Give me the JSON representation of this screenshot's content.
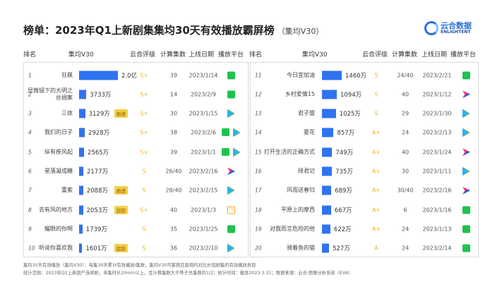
{
  "header": {
    "title": "榜单：2023年Q1上新剧集集均30天有效播放霸屏榜",
    "subtitle": "（集均V30）",
    "logo_cn": "云合数据",
    "logo_en": "ENLIGHTENT"
  },
  "columns": {
    "rank": "排名",
    "v30": "集均V30",
    "rating": "云合评级",
    "eps": "计算集数",
    "date": "上线日期",
    "platform": "播放平台"
  },
  "colors": {
    "bar": "#2f73f0",
    "rating": "#f0b400",
    "badge": "#f3cf48"
  },
  "chart_data": {
    "type": "bar",
    "xlabel": "集均V30",
    "unit": "万",
    "left": [
      {
        "rank": "1",
        "name": "狂飙",
        "value": 20000,
        "label": "2.0亿",
        "badge": "",
        "rating": "S+",
        "eps": "39",
        "date": "2023/1/14",
        "platforms": [
          "iqiyi"
        ]
      },
      {
        "rank": "2",
        "name": "显微镜下的大明之丝绢案",
        "value": 3733,
        "label": "3733万",
        "badge": "",
        "rating": "S+",
        "eps": "14",
        "date": "2023/2/9",
        "platforms": [
          "iqiyi"
        ]
      },
      {
        "rank": "3",
        "name": "三体",
        "value": 3129,
        "label": "3129万",
        "badge": "剧透",
        "rating": "S+",
        "eps": "30",
        "date": "2023/1/15",
        "platforms": [
          "tencent"
        ]
      },
      {
        "rank": "4",
        "name": "我们的日子",
        "value": 2928,
        "label": "2928万",
        "badge": "",
        "rating": "S+",
        "eps": "38",
        "date": "2023/2/6",
        "platforms": [
          "iqiyi",
          "tencent"
        ]
      },
      {
        "rank": "5",
        "name": "纵有疾风起",
        "value": 2565,
        "label": "2565万",
        "badge": "",
        "rating": "S+",
        "eps": "39",
        "date": "2023/1/1",
        "platforms": [
          "iqiyi",
          "tencent"
        ]
      },
      {
        "rank": "6",
        "name": "星落凝成糖",
        "value": 2177,
        "label": "2177万",
        "badge": "",
        "rating": "S",
        "eps": "26/40",
        "date": "2023/2/16",
        "platforms": [
          "youku"
        ]
      },
      {
        "rank": "7",
        "name": "重紫",
        "value": 2088,
        "label": "2088万",
        "badge": "剧透",
        "rating": "S",
        "eps": "28/40",
        "date": "2023/2/15",
        "platforms": [
          "tencent"
        ]
      },
      {
        "rank": "8",
        "name": "去有风的地方",
        "value": 2053,
        "label": "2053万",
        "badge": "超前",
        "rating": "S+",
        "eps": "40",
        "date": "2023/1/3",
        "platforms": [
          "mango"
        ]
      },
      {
        "rank": "9",
        "name": "耀眼的你啊",
        "value": 1739,
        "label": "1739万",
        "badge": "",
        "rating": "S",
        "eps": "35",
        "date": "2023/1/25",
        "platforms": [
          "iqiyi"
        ]
      },
      {
        "rank": "10",
        "name": "听说你喜欢我",
        "value": 1601,
        "label": "1601万",
        "badge": "超前",
        "rating": "S",
        "eps": "36",
        "date": "2023/2/10",
        "platforms": [
          "tencent"
        ]
      }
    ],
    "right": [
      {
        "rank": "11",
        "name": "今日宜加油",
        "value": 1460,
        "label": "1460万",
        "badge": "",
        "rating": "S",
        "eps": "24/40",
        "date": "2023/2/21",
        "platforms": [
          "iqiyi"
        ]
      },
      {
        "rank": "12",
        "name": "乡村爱情15",
        "value": 1094,
        "label": "1094万",
        "badge": "",
        "rating": "S",
        "eps": "40",
        "date": "2023/1/12",
        "platforms": [
          "youku"
        ]
      },
      {
        "rank": "13",
        "name": "君子盟",
        "value": 1025,
        "label": "1025万",
        "badge": "",
        "rating": "S",
        "eps": "29",
        "date": "2023/1/30",
        "platforms": [
          "tencent"
        ]
      },
      {
        "rank": "14",
        "name": "夏花",
        "value": 857,
        "label": "857万",
        "badge": "",
        "rating": "A+",
        "eps": "24",
        "date": "2023/2/13",
        "platforms": [
          "tencent"
        ]
      },
      {
        "rank": "15",
        "name": "打开生活的正确方式",
        "value": 749,
        "label": "749万",
        "badge": "",
        "rating": "A+",
        "eps": "40",
        "date": "2023/1/24",
        "platforms": [
          "youku"
        ]
      },
      {
        "rank": "16",
        "name": "择君记",
        "value": 735,
        "label": "735万",
        "badge": "",
        "rating": "A+",
        "eps": "30",
        "date": "2023/1/11",
        "platforms": [
          "tencent"
        ]
      },
      {
        "rank": "17",
        "name": "风雨送春归",
        "value": 689,
        "label": "689万",
        "badge": "",
        "rating": "A+",
        "eps": "30/40",
        "date": "2023/2/16",
        "platforms": [
          "youku"
        ]
      },
      {
        "rank": "18",
        "name": "平原上的摩西",
        "value": 667,
        "label": "667万",
        "badge": "",
        "rating": "A+",
        "eps": "6",
        "date": "2023/1/16",
        "platforms": [
          "iqiyi"
        ]
      },
      {
        "rank": "19",
        "name": "对我而言危险的他",
        "value": 622,
        "label": "622万",
        "badge": "",
        "rating": "A+",
        "eps": "24",
        "date": "2023/1/13",
        "platforms": [
          "iqiyi"
        ]
      },
      {
        "rank": "20",
        "name": "骑着鱼的猫",
        "value": 527,
        "label": "527万",
        "badge": "",
        "rating": "A",
        "eps": "24",
        "date": "2023/2/14",
        "platforms": [
          "iqiyi"
        ]
      }
    ]
  },
  "footer": {
    "line1": "集均30天有效播放（集均V30）：每集30天累计有效播放/集数，集均V30可客观且直观的对比长短剧集的有效播放表现",
    "line2": "统计范围：2023年Q1上新国产连续剧，单集时长20min以上，且计算集数大于等于总集数的1/2；统计时间：截至2023.3.31；数据来源：云合·图像分析系统（EVA）"
  }
}
